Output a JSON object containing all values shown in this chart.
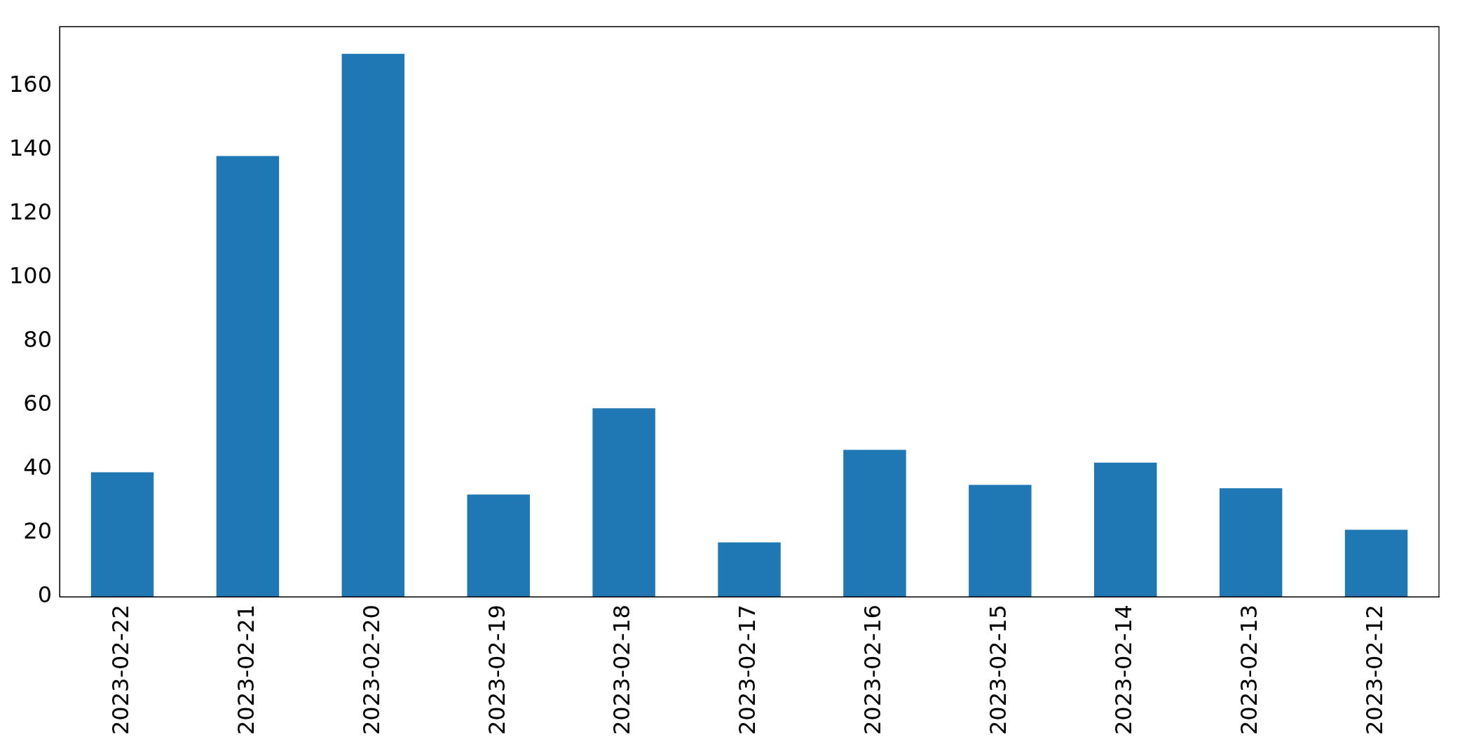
{
  "chart_data": {
    "type": "bar",
    "categories": [
      "2023-02-22",
      "2023-02-21",
      "2023-02-20",
      "2023-02-19",
      "2023-02-18",
      "2023-02-17",
      "2023-02-16",
      "2023-02-15",
      "2023-02-14",
      "2023-02-13",
      "2023-02-12"
    ],
    "values": [
      39,
      138,
      170,
      32,
      59,
      17,
      46,
      35,
      42,
      34,
      21
    ],
    "color": "#1f77b4",
    "ylim": [
      0,
      178.5
    ],
    "yticks": [
      0,
      20,
      40,
      60,
      80,
      100,
      120,
      140,
      160
    ],
    "grid": false,
    "legend": false
  }
}
